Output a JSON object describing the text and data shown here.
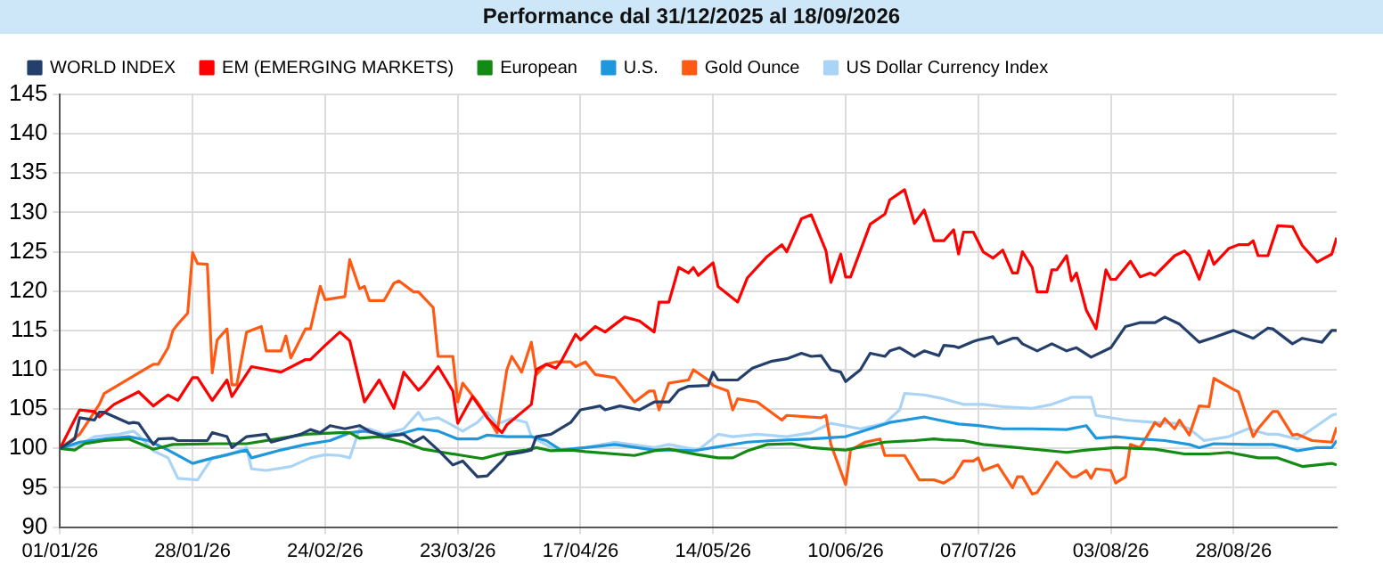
{
  "chart_data": {
    "type": "line",
    "title": "Performance dal 31/12/2025 al 18/09/2026",
    "legend": "top left",
    "grid": true,
    "marker": "none",
    "line_style": "solid",
    "xlim": [
      "2026-01-01",
      "2026-09-18"
    ],
    "xticks": [
      {
        "value": "2026-01-01",
        "label": "01/01/26"
      },
      {
        "value": "2026-01-28",
        "label": "28/01/26"
      },
      {
        "value": "2026-02-24",
        "label": "24/02/26"
      },
      {
        "value": "2026-03-23",
        "label": "23/03/26"
      },
      {
        "value": "2026-04-17",
        "label": "17/04/26"
      },
      {
        "value": "2026-05-14",
        "label": "14/05/26"
      },
      {
        "value": "2026-06-10",
        "label": "10/06/26"
      },
      {
        "value": "2026-07-07",
        "label": "07/07/26"
      },
      {
        "value": "2026-08-03",
        "label": "03/08/26"
      },
      {
        "value": "2026-08-28",
        "label": "28/08/26"
      }
    ],
    "ylim": [
      90,
      145
    ],
    "yticks": [
      90,
      95,
      100,
      105,
      110,
      115,
      120,
      125,
      130,
      135,
      140,
      145
    ],
    "series": [
      {
        "name": "WORLD INDEX",
        "color": "#243f6b",
        "x": [
          "2026-01-01",
          "2026-01-04",
          "2026-01-05",
          "2026-01-08",
          "2026-01-09",
          "2026-01-10",
          "2026-01-15",
          "2026-01-16",
          "2026-01-17",
          "2026-01-20",
          "2026-01-21",
          "2026-01-24",
          "2026-01-25",
          "2026-01-31",
          "2026-02-01",
          "2026-02-04",
          "2026-02-05",
          "2026-02-08",
          "2026-02-12",
          "2026-02-13",
          "2026-02-19",
          "2026-02-21",
          "2026-02-23",
          "2026-02-25",
          "2026-02-28",
          "2026-03-03",
          "2026-03-05",
          "2026-03-08",
          "2026-03-12",
          "2026-03-14",
          "2026-03-16",
          "2026-03-19",
          "2026-03-22",
          "2026-03-24",
          "2026-03-27",
          "2026-03-29",
          "2026-04-01",
          "2026-04-02",
          "2026-04-05",
          "2026-04-07",
          "2026-04-08",
          "2026-04-11",
          "2026-04-15",
          "2026-04-17",
          "2026-04-21",
          "2026-04-22",
          "2026-04-25",
          "2026-04-29",
          "2026-05-02",
          "2026-05-05",
          "2026-05-07",
          "2026-05-09",
          "2026-05-13",
          "2026-05-14",
          "2026-05-15",
          "2026-05-19",
          "2026-05-22",
          "2026-05-26",
          "2026-05-29",
          "2026-06-01",
          "2026-06-03",
          "2026-06-05",
          "2026-06-07",
          "2026-06-09",
          "2026-06-10",
          "2026-06-13",
          "2026-06-15",
          "2026-06-18",
          "2026-06-19",
          "2026-06-21",
          "2026-06-24",
          "2026-06-26",
          "2026-06-29",
          "2026-06-30",
          "2026-07-02",
          "2026-07-03",
          "2026-07-06",
          "2026-07-07",
          "2026-07-10",
          "2026-07-11",
          "2026-07-14",
          "2026-07-15",
          "2026-07-16",
          "2026-07-19",
          "2026-07-22",
          "2026-07-25",
          "2026-07-27",
          "2026-07-30",
          "2026-08-03",
          "2026-08-06",
          "2026-08-09",
          "2026-08-12",
          "2026-08-14",
          "2026-08-17",
          "2026-08-21",
          "2026-08-24",
          "2026-08-28",
          "2026-09-01",
          "2026-09-04",
          "2026-09-05",
          "2026-09-09",
          "2026-09-11",
          "2026-09-15",
          "2026-09-17",
          "2026-09-18"
        ],
        "values": [
          100,
          101.2,
          103.9,
          103.6,
          104.6,
          104.6,
          103.2,
          103.3,
          103.2,
          100.5,
          101.2,
          101.3,
          101,
          101,
          102,
          101.5,
          100.1,
          101.5,
          101.8,
          100.8,
          101.8,
          102.4,
          102,
          102.9,
          102.5,
          102.9,
          102.2,
          101.5,
          101.8,
          100.8,
          101.5,
          99.8,
          97.9,
          98.4,
          96.4,
          96.5,
          98.4,
          99.2,
          99.5,
          99.8,
          101.5,
          101.8,
          103.3,
          104.9,
          105.4,
          104.9,
          105.4,
          104.9,
          105.9,
          105.9,
          107.4,
          107.9,
          108,
          109.7,
          108.7,
          108.7,
          110.2,
          111.1,
          111.4,
          112.1,
          111.7,
          111.8,
          110,
          109.7,
          108.5,
          110,
          112.1,
          111.7,
          112.4,
          112.8,
          111.7,
          112.4,
          111.8,
          113.1,
          113,
          112.8,
          113.6,
          113.8,
          114.2,
          113.3,
          114,
          114,
          113.3,
          112.4,
          113.3,
          112.4,
          112.8,
          111.6,
          112.8,
          115.5,
          116,
          116,
          116.7,
          115.8,
          113.5,
          114.1,
          115,
          114,
          115.3,
          115.2,
          113.3,
          114,
          113.5,
          115,
          115
        ]
      },
      {
        "name": "EM (EMERGING MARKETS)",
        "color": "#ff0000",
        "x": [
          "2026-01-01",
          "2026-01-05",
          "2026-01-08",
          "2026-01-09",
          "2026-01-12",
          "2026-01-17",
          "2026-01-20",
          "2026-01-23",
          "2026-01-25",
          "2026-01-28",
          "2026-01-29",
          "2026-02-01",
          "2026-02-04",
          "2026-02-05",
          "2026-02-09",
          "2026-02-15",
          "2026-02-20",
          "2026-02-21",
          "2026-02-24",
          "2026-02-27",
          "2026-03-01",
          "2026-03-04",
          "2026-03-07",
          "2026-03-10",
          "2026-03-12",
          "2026-03-15",
          "2026-03-16",
          "2026-03-19",
          "2026-03-22",
          "2026-03-23",
          "2026-03-26",
          "2026-03-29",
          "2026-04-01",
          "2026-04-02",
          "2026-04-07",
          "2026-04-08",
          "2026-04-10",
          "2026-04-12",
          "2026-04-13",
          "2026-04-16",
          "2026-04-17",
          "2026-04-20",
          "2026-04-22",
          "2026-04-26",
          "2026-04-29",
          "2026-05-02",
          "2026-05-03",
          "2026-05-05",
          "2026-05-07",
          "2026-05-09",
          "2026-05-10",
          "2026-05-11",
          "2026-05-14",
          "2026-05-15",
          "2026-05-19",
          "2026-05-21",
          "2026-05-25",
          "2026-05-28",
          "2026-05-29",
          "2026-06-01",
          "2026-06-03",
          "2026-06-06",
          "2026-06-07",
          "2026-06-09",
          "2026-06-10",
          "2026-06-11",
          "2026-06-15",
          "2026-06-18",
          "2026-06-19",
          "2026-06-22",
          "2026-06-24",
          "2026-06-26",
          "2026-06-28",
          "2026-06-30",
          "2026-07-02",
          "2026-07-03",
          "2026-07-04",
          "2026-07-06",
          "2026-07-08",
          "2026-07-10",
          "2026-07-12",
          "2026-07-14",
          "2026-07-15",
          "2026-07-16",
          "2026-07-18",
          "2026-07-19",
          "2026-07-21",
          "2026-07-22",
          "2026-07-23",
          "2026-07-25",
          "2026-07-26",
          "2026-07-27",
          "2026-07-29",
          "2026-07-31",
          "2026-08-02",
          "2026-08-03",
          "2026-08-04",
          "2026-08-07",
          "2026-08-09",
          "2026-08-11",
          "2026-08-12",
          "2026-08-16",
          "2026-08-18",
          "2026-08-19",
          "2026-08-21",
          "2026-08-23",
          "2026-08-24",
          "2026-08-27",
          "2026-08-29",
          "2026-08-31",
          "2026-09-01",
          "2026-09-02",
          "2026-09-04",
          "2026-09-06",
          "2026-09-09",
          "2026-09-11",
          "2026-09-14",
          "2026-09-17",
          "2026-09-18"
        ],
        "values": [
          100,
          104.9,
          104.7,
          104,
          105.6,
          107.2,
          105.4,
          106.8,
          106.1,
          109,
          109,
          106.1,
          108.7,
          106.6,
          110.4,
          109.7,
          111.3,
          111.3,
          113.1,
          114.8,
          113.7,
          105.9,
          108.7,
          105.1,
          109.7,
          107.4,
          108,
          110.4,
          107.3,
          103.2,
          106.6,
          103.9,
          102,
          103,
          105.6,
          110,
          110.7,
          110.2,
          111,
          114.5,
          113.8,
          115.5,
          114.8,
          116.7,
          116.2,
          114.8,
          118.6,
          118.6,
          123,
          122.3,
          123,
          122,
          123.6,
          120.6,
          118.6,
          121.7,
          124.4,
          125.9,
          125,
          129.2,
          129.7,
          125.1,
          121.1,
          124.7,
          121.8,
          121.8,
          128.5,
          129.8,
          131.6,
          132.9,
          128.6,
          130.3,
          126.4,
          126.4,
          127.8,
          124.7,
          127.5,
          127.5,
          125,
          124.2,
          125.2,
          122.3,
          122.3,
          125,
          123,
          119.9,
          119.9,
          122.7,
          122.7,
          124.5,
          121.3,
          122.3,
          117.6,
          115.2,
          122.7,
          121.5,
          121.5,
          123.8,
          121.8,
          122.3,
          122,
          124.5,
          125.1,
          124.5,
          121.5,
          125.1,
          123.4,
          125.4,
          125.9,
          125.9,
          126.4,
          124.5,
          124.5,
          128.3,
          128.2,
          125.8,
          123.7,
          124.7,
          126.8
        ]
      },
      {
        "name": "European",
        "color": "#138a13",
        "x": [
          "2026-01-01",
          "2026-01-04",
          "2026-01-06",
          "2026-01-10",
          "2026-01-15",
          "2026-01-20",
          "2026-01-24",
          "2026-02-02",
          "2026-02-08",
          "2026-02-15",
          "2026-02-20",
          "2026-02-27",
          "2026-03-01",
          "2026-03-03",
          "2026-03-07",
          "2026-03-12",
          "2026-03-16",
          "2026-03-20",
          "2026-03-24",
          "2026-03-28",
          "2026-03-31",
          "2026-04-02",
          "2026-04-06",
          "2026-04-08",
          "2026-04-11",
          "2026-04-15",
          "2026-04-18",
          "2026-04-28",
          "2026-05-02",
          "2026-05-05",
          "2026-05-11",
          "2026-05-15",
          "2026-05-18",
          "2026-05-21",
          "2026-05-25",
          "2026-05-30",
          "2026-06-03",
          "2026-06-07",
          "2026-06-10",
          "2026-06-14",
          "2026-06-18",
          "2026-06-24",
          "2026-06-28",
          "2026-06-30",
          "2026-07-04",
          "2026-07-08",
          "2026-07-15",
          "2026-07-25",
          "2026-07-29",
          "2026-08-04",
          "2026-08-12",
          "2026-08-18",
          "2026-08-23",
          "2026-08-27",
          "2026-09-02",
          "2026-09-06",
          "2026-09-11",
          "2026-09-14",
          "2026-09-17",
          "2026-09-18"
        ],
        "values": [
          100,
          99.8,
          100.6,
          101,
          101.2,
          99.9,
          100.5,
          100.6,
          100.6,
          101.3,
          101.8,
          102,
          102,
          101.3,
          101.5,
          100.8,
          99.9,
          99.5,
          99.1,
          98.7,
          99.2,
          99.5,
          99.8,
          100.1,
          99.7,
          99.8,
          99.6,
          99.1,
          99.7,
          99.9,
          99.2,
          98.8,
          98.8,
          99.7,
          100.5,
          100.6,
          100.1,
          99.9,
          99.8,
          100.3,
          100.8,
          101,
          101.2,
          101.1,
          101,
          100.5,
          100.1,
          99.5,
          99.8,
          100.1,
          99.9,
          99.3,
          99.3,
          99.5,
          98.8,
          98.8,
          97.7,
          97.9,
          98.1,
          97.9
        ]
      },
      {
        "name": "U.S.",
        "color": "#1f97dc",
        "x": [
          "2026-01-01",
          "2026-01-05",
          "2026-01-10",
          "2026-01-15",
          "2026-01-19",
          "2026-01-23",
          "2026-01-28",
          "2026-01-31",
          "2026-02-04",
          "2026-02-08",
          "2026-02-09",
          "2026-02-15",
          "2026-02-20",
          "2026-02-25",
          "2026-03-01",
          "2026-03-04",
          "2026-03-08",
          "2026-03-11",
          "2026-03-15",
          "2026-03-19",
          "2026-03-23",
          "2026-03-27",
          "2026-03-29",
          "2026-04-02",
          "2026-04-07",
          "2026-04-10",
          "2026-04-13",
          "2026-04-18",
          "2026-04-24",
          "2026-05-02",
          "2026-05-06",
          "2026-05-10",
          "2026-05-14",
          "2026-05-21",
          "2026-05-26",
          "2026-06-03",
          "2026-06-10",
          "2026-06-15",
          "2026-06-19",
          "2026-06-22",
          "2026-06-26",
          "2026-06-29",
          "2026-07-03",
          "2026-07-07",
          "2026-07-12",
          "2026-07-18",
          "2026-07-25",
          "2026-07-29",
          "2026-07-31",
          "2026-08-04",
          "2026-08-09",
          "2026-08-14",
          "2026-08-19",
          "2026-08-21",
          "2026-08-24",
          "2026-08-31",
          "2026-09-05",
          "2026-09-08",
          "2026-09-10",
          "2026-09-14",
          "2026-09-17",
          "2026-09-18"
        ],
        "values": [
          100,
          100.8,
          101.2,
          101.5,
          101,
          99.8,
          98.1,
          98.6,
          99.2,
          99.8,
          98.8,
          99.8,
          100.5,
          101,
          102,
          102.2,
          101.7,
          101.8,
          102.5,
          102.2,
          101.2,
          101.2,
          101.7,
          101.5,
          101.5,
          101,
          99.8,
          100.1,
          100.5,
          99.8,
          99.8,
          99.7,
          100.1,
          100.8,
          101,
          101.2,
          101.5,
          102.5,
          103.3,
          103.6,
          104,
          103.6,
          103.1,
          102.9,
          102.5,
          102.5,
          102.4,
          102.9,
          101.3,
          101.5,
          101.2,
          101,
          100.5,
          100.1,
          100.6,
          100.5,
          100.5,
          100.1,
          99.7,
          100.1,
          100.1,
          101
        ]
      },
      {
        "name": "Gold Ounce",
        "color": "#ff5a14",
        "x": [
          "2026-01-01",
          "2026-01-05",
          "2026-01-09",
          "2026-01-10",
          "2026-01-17",
          "2026-01-20",
          "2026-01-21",
          "2026-01-23",
          "2026-01-24",
          "2026-01-25",
          "2026-01-27",
          "2026-01-28",
          "2026-01-29",
          "2026-01-31",
          "2026-02-01",
          "2026-02-02",
          "2026-02-04",
          "2026-02-05",
          "2026-02-06",
          "2026-02-08",
          "2026-02-11",
          "2026-02-12",
          "2026-02-15",
          "2026-02-16",
          "2026-02-17",
          "2026-02-20",
          "2026-02-21",
          "2026-02-23",
          "2026-02-24",
          "2026-02-28",
          "2026-03-01",
          "2026-03-03",
          "2026-03-04",
          "2026-03-05",
          "2026-03-08",
          "2026-03-10",
          "2026-03-11",
          "2026-03-14",
          "2026-03-15",
          "2026-03-18",
          "2026-03-19",
          "2026-03-22",
          "2026-03-23",
          "2026-03-24",
          "2026-03-27",
          "2026-03-29",
          "2026-03-31",
          "2026-04-02",
          "2026-04-03",
          "2026-04-05",
          "2026-04-07",
          "2026-04-08",
          "2026-04-10",
          "2026-04-12",
          "2026-04-15",
          "2026-04-16",
          "2026-04-18",
          "2026-04-20",
          "2026-04-24",
          "2026-04-28",
          "2026-05-01",
          "2026-05-02",
          "2026-05-03",
          "2026-05-05",
          "2026-05-09",
          "2026-05-10",
          "2026-05-13",
          "2026-05-14",
          "2026-05-17",
          "2026-05-18",
          "2026-05-19",
          "2026-05-23",
          "2026-05-28",
          "2026-05-29",
          "2026-06-05",
          "2026-06-06",
          "2026-06-07",
          "2026-06-10",
          "2026-06-11",
          "2026-06-14",
          "2026-06-17",
          "2026-06-18",
          "2026-06-22",
          "2026-06-25",
          "2026-06-28",
          "2026-06-30",
          "2026-07-02",
          "2026-07-04",
          "2026-07-06",
          "2026-07-07",
          "2026-07-08",
          "2026-07-11",
          "2026-07-14",
          "2026-07-15",
          "2026-07-16",
          "2026-07-18",
          "2026-07-19",
          "2026-07-23",
          "2026-07-26",
          "2026-07-27",
          "2026-07-29",
          "2026-07-30",
          "2026-07-31",
          "2026-08-03",
          "2026-08-04",
          "2026-08-06",
          "2026-08-07",
          "2026-08-09",
          "2026-08-12",
          "2026-08-13",
          "2026-08-14",
          "2026-08-16",
          "2026-08-17",
          "2026-08-19",
          "2026-08-21",
          "2026-08-23",
          "2026-08-24",
          "2026-08-28",
          "2026-08-29",
          "2026-09-01",
          "2026-09-02",
          "2026-09-05",
          "2026-09-06",
          "2026-09-09",
          "2026-09-10",
          "2026-09-13",
          "2026-09-17",
          "2026-09-18"
        ],
        "values": [
          100,
          101.8,
          105.6,
          107,
          109.6,
          110.7,
          110.7,
          112.8,
          115,
          115.8,
          117.2,
          124.9,
          123.5,
          123.4,
          109.6,
          113.8,
          115.2,
          108.1,
          108.1,
          114.8,
          115.5,
          112.4,
          112.4,
          114.3,
          111.5,
          115.2,
          115.2,
          120.6,
          118.9,
          119.3,
          124,
          120.3,
          120.6,
          118.8,
          118.8,
          121,
          121.3,
          119.9,
          119.9,
          117.9,
          111.7,
          111.7,
          105.9,
          108.3,
          105.9,
          104,
          102,
          110,
          111.7,
          109.7,
          113.5,
          109.4,
          110.7,
          111,
          111,
          110.4,
          111,
          109.4,
          109,
          105.9,
          107.3,
          107.3,
          104.9,
          108.3,
          108.7,
          110,
          108.7,
          108,
          107.3,
          104.9,
          106.3,
          105.9,
          103.6,
          104.2,
          103.9,
          104.2,
          100.5,
          95.4,
          99.8,
          100.8,
          101.2,
          99.1,
          99.1,
          96,
          96,
          95.6,
          96.4,
          98.4,
          98.4,
          98.8,
          97.2,
          97.9,
          95,
          96.4,
          96.4,
          94.2,
          94.4,
          98.3,
          96.4,
          96.4,
          97.2,
          96.2,
          97.4,
          97.2,
          95.6,
          96.4,
          100.5,
          100.1,
          103.3,
          102.8,
          103.8,
          102.5,
          103.6,
          101.7,
          105.4,
          105.3,
          108.9,
          107.5,
          107.2,
          101.5,
          102.5,
          104.7,
          104.7,
          101.7,
          101.8,
          101,
          100.8,
          102.7
        ]
      },
      {
        "name": "US Dollar Currency Index",
        "color": "#aad4f5",
        "x": [
          "2026-01-01",
          "2026-01-05",
          "2026-01-08",
          "2026-01-13",
          "2026-01-16",
          "2026-01-17",
          "2026-01-20",
          "2026-01-23",
          "2026-01-25",
          "2026-01-29",
          "2026-02-01",
          "2026-02-04",
          "2026-02-08",
          "2026-02-09",
          "2026-02-12",
          "2026-02-17",
          "2026-02-21",
          "2026-02-24",
          "2026-02-27",
          "2026-03-01",
          "2026-03-03",
          "2026-03-05",
          "2026-03-08",
          "2026-03-12",
          "2026-03-15",
          "2026-03-16",
          "2026-03-19",
          "2026-03-22",
          "2026-03-24",
          "2026-03-27",
          "2026-03-29",
          "2026-03-31",
          "2026-04-03",
          "2026-04-06",
          "2026-04-07",
          "2026-04-12",
          "2026-04-18",
          "2026-04-24",
          "2026-05-02",
          "2026-05-05",
          "2026-05-11",
          "2026-05-15",
          "2026-05-18",
          "2026-05-23",
          "2026-05-29",
          "2026-06-03",
          "2026-06-07",
          "2026-06-13",
          "2026-06-18",
          "2026-06-21",
          "2026-06-22",
          "2026-06-26",
          "2026-06-30",
          "2026-07-04",
          "2026-07-08",
          "2026-07-12",
          "2026-07-18",
          "2026-07-22",
          "2026-07-26",
          "2026-07-30",
          "2026-07-31",
          "2026-08-06",
          "2026-08-12",
          "2026-08-16",
          "2026-08-19",
          "2026-08-22",
          "2026-08-27",
          "2026-08-31",
          "2026-09-04",
          "2026-09-06",
          "2026-09-10",
          "2026-09-14",
          "2026-09-17",
          "2026-09-18"
        ],
        "values": [
          100,
          100.5,
          101.5,
          101.8,
          102.2,
          101.7,
          99.7,
          98.8,
          96.2,
          96,
          98.8,
          99.1,
          100.1,
          97.4,
          97.2,
          97.7,
          98.8,
          99.2,
          99.1,
          98.8,
          102.5,
          102.5,
          101.8,
          102.5,
          104.6,
          103.6,
          103.9,
          102.9,
          102.2,
          103.3,
          104.6,
          103.1,
          103.8,
          103.3,
          101.5,
          99.8,
          100.1,
          100.8,
          100.1,
          100.5,
          99.8,
          101.8,
          101.5,
          101.8,
          101.5,
          102,
          103.2,
          102.5,
          103.2,
          104.9,
          107,
          106.8,
          106.3,
          105.6,
          105.6,
          105.3,
          105.1,
          105.6,
          106.5,
          106.5,
          104.2,
          103.6,
          103.3,
          103.2,
          102.5,
          101,
          101.5,
          102.5,
          101.8,
          101.8,
          101.2,
          102.9,
          104.2,
          104.4
        ]
      }
    ]
  }
}
